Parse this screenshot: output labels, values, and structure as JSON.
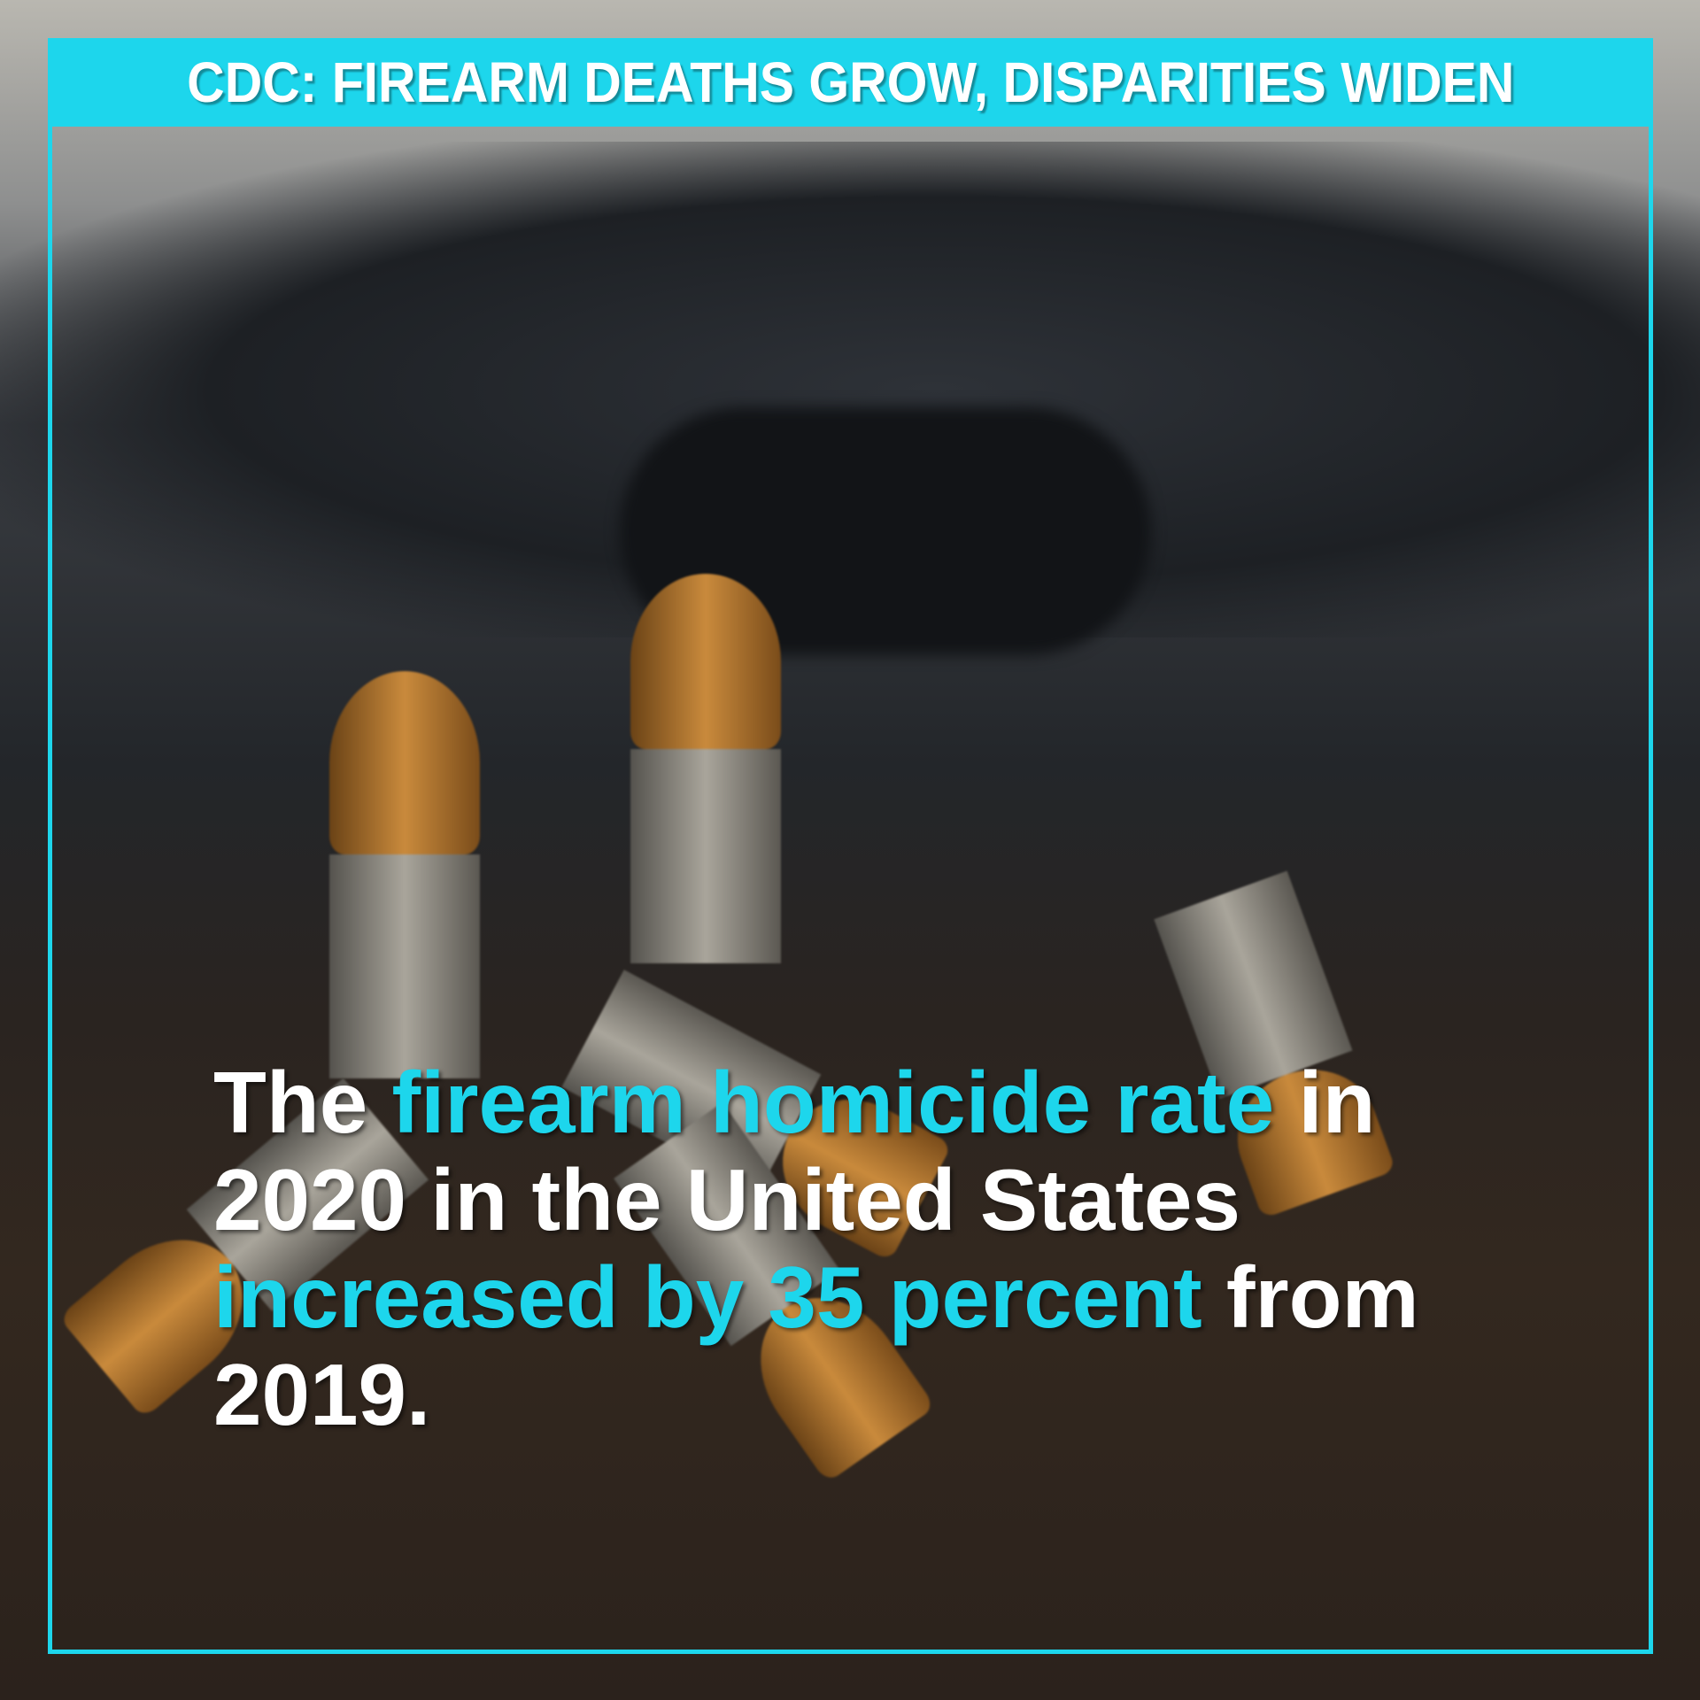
{
  "header": {
    "title": "CDC: FIREARM DEATHS GROW, DISPARITIES WIDEN"
  },
  "caption": {
    "part1": "The ",
    "part2": "firearm homicide rate",
    "part3": " in 2020 in the United States ",
    "part4": "increased by 35 percent",
    "part5": " from 2019."
  },
  "colors": {
    "accent": "#1dd6ec",
    "text": "#ffffff"
  }
}
